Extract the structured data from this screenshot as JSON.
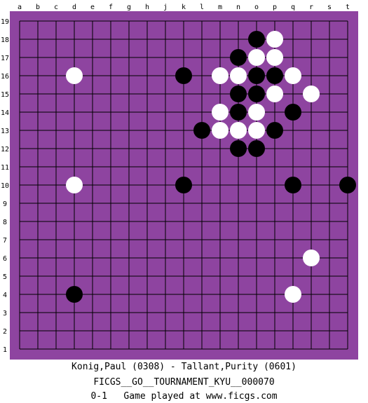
{
  "board": {
    "size": 19,
    "column_labels": [
      "a",
      "b",
      "c",
      "d",
      "e",
      "f",
      "g",
      "h",
      "j",
      "k",
      "l",
      "m",
      "n",
      "o",
      "p",
      "q",
      "r",
      "s",
      "t"
    ],
    "row_labels": [
      "19",
      "18",
      "17",
      "16",
      "15",
      "14",
      "13",
      "12",
      "11",
      "10",
      "9",
      "8",
      "7",
      "6",
      "5",
      "4",
      "3",
      "2",
      "1"
    ],
    "board_color": "#8e44a0",
    "frame_color": "#8e44a0",
    "line_color": "#000000",
    "black_stone_color": "#000000",
    "white_stone_color": "#ffffff",
    "black_stones": [
      "o18",
      "n17",
      "k16",
      "o16",
      "p16",
      "n15",
      "o15",
      "n14",
      "q14",
      "l13",
      "p13",
      "n12",
      "o12",
      "k10",
      "q10",
      "t10",
      "d4"
    ],
    "white_stones": [
      "p18",
      "o17",
      "p17",
      "d16",
      "m16",
      "n16",
      "q16",
      "p15",
      "r15",
      "m14",
      "o14",
      "m13",
      "n13",
      "o13",
      "d10",
      "r6",
      "q4"
    ]
  },
  "footer": {
    "players": "Konig,Paul (0308) - Tallant,Purity (0601)",
    "event": "FICGS__GO__TOURNAMENT_KYU__000070",
    "result_line": "0-1   Game played at www.ficgs.com"
  }
}
